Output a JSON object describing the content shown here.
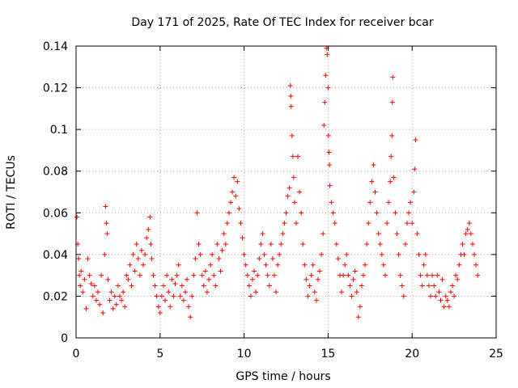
{
  "chart_data": {
    "type": "scatter",
    "title": "Day 171 of 2025, Rate Of TEC Index for receiver bcar",
    "xlabel": "GPS time / hours",
    "ylabel": "ROTI / TECUs",
    "xlim": [
      0,
      25
    ],
    "ylim": [
      0,
      0.14
    ],
    "xticks": [
      0,
      5,
      10,
      15,
      20,
      25
    ],
    "yticks": [
      0,
      0.02,
      0.04,
      0.06,
      0.08,
      0.1,
      0.12,
      0.14
    ],
    "xtick_labels": [
      "0",
      "5",
      "10",
      "15",
      "20",
      "25"
    ],
    "ytick_labels": [
      "0",
      "0.02",
      "0.04",
      "0.06",
      "0.08",
      "0.1",
      "0.12",
      "0.14"
    ],
    "grid": true,
    "marker": "plus",
    "color": "#ff0000",
    "series": [
      {
        "points": [
          [
            0.05,
            0.058
          ],
          [
            0.1,
            0.045
          ],
          [
            0.15,
            0.038
          ],
          [
            0.2,
            0.03
          ],
          [
            0.25,
            0.025
          ],
          [
            0.3,
            0.032
          ],
          [
            0.4,
            0.022
          ],
          [
            0.5,
            0.028
          ],
          [
            0.6,
            0.014
          ],
          [
            0.7,
            0.038
          ],
          [
            0.8,
            0.03
          ],
          [
            0.9,
            0.026
          ],
          [
            1.0,
            0.02
          ],
          [
            1.1,
            0.025
          ],
          [
            1.2,
            0.018
          ],
          [
            1.3,
            0.022
          ],
          [
            1.4,
            0.016
          ],
          [
            1.5,
            0.03
          ],
          [
            1.6,
            0.012
          ],
          [
            1.7,
            0.04
          ],
          [
            1.75,
            0.063
          ],
          [
            1.8,
            0.055
          ],
          [
            1.85,
            0.05
          ],
          [
            1.9,
            0.028
          ],
          [
            2.0,
            0.018
          ],
          [
            2.1,
            0.022
          ],
          [
            2.2,
            0.014
          ],
          [
            2.3,
            0.02
          ],
          [
            2.4,
            0.016
          ],
          [
            2.5,
            0.025
          ],
          [
            2.6,
            0.02
          ],
          [
            2.7,
            0.018
          ],
          [
            2.8,
            0.022
          ],
          [
            2.9,
            0.015
          ],
          [
            3.0,
            0.03
          ],
          [
            3.1,
            0.028
          ],
          [
            3.2,
            0.035
          ],
          [
            3.3,
            0.025
          ],
          [
            3.4,
            0.04
          ],
          [
            3.5,
            0.032
          ],
          [
            3.6,
            0.045
          ],
          [
            3.7,
            0.038
          ],
          [
            3.8,
            0.03
          ],
          [
            3.9,
            0.042
          ],
          [
            4.0,
            0.035
          ],
          [
            4.1,
            0.04
          ],
          [
            4.2,
            0.048
          ],
          [
            4.3,
            0.052
          ],
          [
            4.4,
            0.058
          ],
          [
            4.45,
            0.045
          ],
          [
            4.5,
            0.038
          ],
          [
            4.6,
            0.03
          ],
          [
            4.7,
            0.025
          ],
          [
            4.8,
            0.02
          ],
          [
            4.9,
            0.015
          ],
          [
            5.0,
            0.012
          ],
          [
            5.1,
            0.02
          ],
          [
            5.2,
            0.025
          ],
          [
            5.3,
            0.018
          ],
          [
            5.4,
            0.03
          ],
          [
            5.5,
            0.022
          ],
          [
            5.6,
            0.015
          ],
          [
            5.7,
            0.028
          ],
          [
            5.8,
            0.02
          ],
          [
            5.9,
            0.026
          ],
          [
            6.0,
            0.03
          ],
          [
            6.1,
            0.035
          ],
          [
            6.2,
            0.02
          ],
          [
            6.3,
            0.025
          ],
          [
            6.4,
            0.018
          ],
          [
            6.5,
            0.022
          ],
          [
            6.6,
            0.028
          ],
          [
            6.7,
            0.015
          ],
          [
            6.8,
            0.01
          ],
          [
            6.9,
            0.02
          ],
          [
            7.0,
            0.03
          ],
          [
            7.1,
            0.038
          ],
          [
            7.2,
            0.06
          ],
          [
            7.3,
            0.045
          ],
          [
            7.4,
            0.04
          ],
          [
            7.5,
            0.03
          ],
          [
            7.6,
            0.025
          ],
          [
            7.7,
            0.032
          ],
          [
            7.8,
            0.022
          ],
          [
            7.9,
            0.028
          ],
          [
            8.0,
            0.035
          ],
          [
            8.1,
            0.04
          ],
          [
            8.2,
            0.03
          ],
          [
            8.3,
            0.025
          ],
          [
            8.4,
            0.045
          ],
          [
            8.5,
            0.038
          ],
          [
            8.6,
            0.032
          ],
          [
            8.7,
            0.042
          ],
          [
            8.8,
            0.05
          ],
          [
            8.9,
            0.045
          ],
          [
            9.0,
            0.055
          ],
          [
            9.1,
            0.06
          ],
          [
            9.2,
            0.065
          ],
          [
            9.3,
            0.07
          ],
          [
            9.4,
            0.077
          ],
          [
            9.5,
            0.068
          ],
          [
            9.6,
            0.075
          ],
          [
            9.7,
            0.062
          ],
          [
            9.8,
            0.055
          ],
          [
            9.9,
            0.048
          ],
          [
            10.0,
            0.04
          ],
          [
            10.1,
            0.035
          ],
          [
            10.2,
            0.03
          ],
          [
            10.3,
            0.025
          ],
          [
            10.4,
            0.02
          ],
          [
            10.5,
            0.028
          ],
          [
            10.6,
            0.032
          ],
          [
            10.7,
            0.022
          ],
          [
            10.8,
            0.03
          ],
          [
            10.9,
            0.038
          ],
          [
            11.0,
            0.045
          ],
          [
            11.1,
            0.05
          ],
          [
            11.2,
            0.04
          ],
          [
            11.3,
            0.035
          ],
          [
            11.4,
            0.03
          ],
          [
            11.5,
            0.025
          ],
          [
            11.6,
            0.045
          ],
          [
            11.7,
            0.038
          ],
          [
            11.8,
            0.03
          ],
          [
            11.9,
            0.022
          ],
          [
            12.0,
            0.035
          ],
          [
            12.1,
            0.04
          ],
          [
            12.2,
            0.045
          ],
          [
            12.3,
            0.05
          ],
          [
            12.4,
            0.055
          ],
          [
            12.5,
            0.06
          ],
          [
            12.6,
            0.068
          ],
          [
            12.7,
            0.072
          ],
          [
            12.75,
            0.121
          ],
          [
            12.78,
            0.116
          ],
          [
            12.8,
            0.111
          ],
          [
            12.85,
            0.097
          ],
          [
            12.9,
            0.087
          ],
          [
            12.95,
            0.077
          ],
          [
            13.0,
            0.065
          ],
          [
            13.1,
            0.055
          ],
          [
            13.2,
            0.087
          ],
          [
            13.3,
            0.07
          ],
          [
            13.4,
            0.06
          ],
          [
            13.5,
            0.045
          ],
          [
            13.6,
            0.035
          ],
          [
            13.7,
            0.028
          ],
          [
            13.8,
            0.02
          ],
          [
            13.9,
            0.025
          ],
          [
            14.0,
            0.03
          ],
          [
            14.1,
            0.035
          ],
          [
            14.2,
            0.022
          ],
          [
            14.3,
            0.018
          ],
          [
            14.4,
            0.028
          ],
          [
            14.5,
            0.032
          ],
          [
            14.6,
            0.04
          ],
          [
            14.7,
            0.05
          ],
          [
            14.75,
            0.102
          ],
          [
            14.8,
            0.113
          ],
          [
            14.85,
            0.126
          ],
          [
            14.9,
            0.139
          ],
          [
            14.95,
            0.136
          ],
          [
            15.0,
            0.12
          ],
          [
            15.02,
            0.097
          ],
          [
            15.05,
            0.089
          ],
          [
            15.08,
            0.083
          ],
          [
            15.1,
            0.073
          ],
          [
            15.2,
            0.065
          ],
          [
            15.3,
            0.06
          ],
          [
            15.4,
            0.055
          ],
          [
            15.5,
            0.045
          ],
          [
            15.6,
            0.038
          ],
          [
            15.7,
            0.03
          ],
          [
            15.8,
            0.022
          ],
          [
            15.9,
            0.03
          ],
          [
            16.0,
            0.035
          ],
          [
            16.1,
            0.04
          ],
          [
            16.2,
            0.03
          ],
          [
            16.3,
            0.025
          ],
          [
            16.4,
            0.02
          ],
          [
            16.5,
            0.028
          ],
          [
            16.6,
            0.032
          ],
          [
            16.7,
            0.022
          ],
          [
            16.8,
            0.01
          ],
          [
            16.9,
            0.015
          ],
          [
            17.0,
            0.025
          ],
          [
            17.1,
            0.03
          ],
          [
            17.2,
            0.035
          ],
          [
            17.3,
            0.045
          ],
          [
            17.4,
            0.055
          ],
          [
            17.5,
            0.065
          ],
          [
            17.6,
            0.075
          ],
          [
            17.7,
            0.083
          ],
          [
            17.8,
            0.07
          ],
          [
            17.9,
            0.06
          ],
          [
            18.0,
            0.05
          ],
          [
            18.1,
            0.045
          ],
          [
            18.2,
            0.04
          ],
          [
            18.3,
            0.035
          ],
          [
            18.4,
            0.03
          ],
          [
            18.5,
            0.055
          ],
          [
            18.6,
            0.065
          ],
          [
            18.7,
            0.075
          ],
          [
            18.75,
            0.087
          ],
          [
            18.8,
            0.097
          ],
          [
            18.82,
            0.113
          ],
          [
            18.85,
            0.125
          ],
          [
            18.9,
            0.077
          ],
          [
            19.0,
            0.06
          ],
          [
            19.1,
            0.05
          ],
          [
            19.2,
            0.04
          ],
          [
            19.3,
            0.03
          ],
          [
            19.4,
            0.025
          ],
          [
            19.5,
            0.02
          ],
          [
            19.6,
            0.045
          ],
          [
            19.7,
            0.055
          ],
          [
            19.8,
            0.06
          ],
          [
            19.9,
            0.065
          ],
          [
            20.0,
            0.055
          ],
          [
            20.1,
            0.07
          ],
          [
            20.15,
            0.081
          ],
          [
            20.2,
            0.095
          ],
          [
            20.3,
            0.05
          ],
          [
            20.4,
            0.04
          ],
          [
            20.5,
            0.03
          ],
          [
            20.6,
            0.025
          ],
          [
            20.7,
            0.035
          ],
          [
            20.8,
            0.04
          ],
          [
            20.9,
            0.03
          ],
          [
            21.0,
            0.025
          ],
          [
            21.1,
            0.02
          ],
          [
            21.2,
            0.03
          ],
          [
            21.3,
            0.025
          ],
          [
            21.4,
            0.02
          ],
          [
            21.5,
            0.03
          ],
          [
            21.6,
            0.022
          ],
          [
            21.7,
            0.018
          ],
          [
            21.8,
            0.028
          ],
          [
            21.9,
            0.015
          ],
          [
            22.0,
            0.02
          ],
          [
            22.1,
            0.018
          ],
          [
            22.2,
            0.015
          ],
          [
            22.3,
            0.022
          ],
          [
            22.4,
            0.025
          ],
          [
            22.5,
            0.02
          ],
          [
            22.6,
            0.03
          ],
          [
            22.7,
            0.028
          ],
          [
            22.8,
            0.035
          ],
          [
            22.9,
            0.04
          ],
          [
            23.0,
            0.045
          ],
          [
            23.1,
            0.04
          ],
          [
            23.2,
            0.05
          ],
          [
            23.3,
            0.052
          ],
          [
            23.4,
            0.055
          ],
          [
            23.5,
            0.05
          ],
          [
            23.6,
            0.045
          ],
          [
            23.7,
            0.04
          ],
          [
            23.8,
            0.035
          ],
          [
            23.9,
            0.03
          ]
        ]
      }
    ]
  }
}
